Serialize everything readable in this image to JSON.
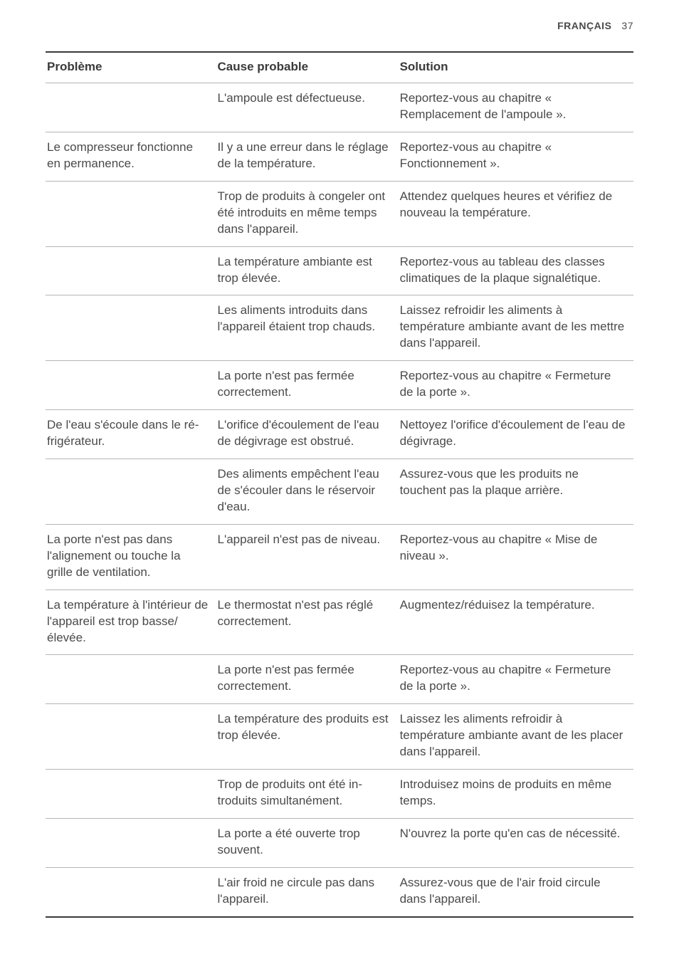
{
  "header": {
    "language_label": "FRANÇAIS",
    "page_number": "37"
  },
  "table": {
    "columns": {
      "problem": "Problème",
      "cause": "Cause probable",
      "solution": "Solution"
    },
    "column_widths_pct": [
      29,
      31,
      40
    ],
    "border_color_heavy": "#3a3a3a",
    "border_color_light": "#b5b5b5",
    "font_size_pt": 12.5,
    "rows": [
      {
        "problem": "",
        "cause": "L'ampoule est défectueuse.",
        "solution": "Reportez-vous au chapitre « Remplacement de l'am­poule »."
      },
      {
        "problem": "Le compresseur fonctionne en permanence.",
        "cause": "Il y a une erreur dans le rég­lage de la température.",
        "solution": "Reportez-vous au chapitre « Fonctionnement »."
      },
      {
        "problem": "",
        "cause": "Trop de produits à congeler ont été introduits en même temps dans l'appareil.",
        "solution": "Attendez quelques heures et vérifiez de nouveau la tem­pérature."
      },
      {
        "problem": "",
        "cause": "La température ambiante est trop élevée.",
        "solution": "Reportez-vous au tableau des classes climatiques de la plaque signalétique."
      },
      {
        "problem": "",
        "cause": "Les aliments introduits dans l'appareil étaient trop chauds.",
        "solution": "Laissez refroidir les aliments à température ambiante avant de les mettre dans l'appareil."
      },
      {
        "problem": "",
        "cause": "La porte n'est pas fermée correctement.",
        "solution": "Reportez-vous au chapitre « Fermeture de la porte »."
      },
      {
        "problem": "De l'eau s'écoule dans le ré­frigérateur.",
        "cause": "L'orifice d'écoulement de l'eau de dégivrage est ob­strué.",
        "solution": "Nettoyez l'orifice d'écoule­ment de l'eau de dégivrage."
      },
      {
        "problem": "",
        "cause": "Des aliments empêchent l'eau de s'écouler dans le réservoir d'eau.",
        "solution": "Assurez-vous que les pro­duits ne touchent pas la pla­que arrière."
      },
      {
        "problem": "La porte n'est pas dans l'alignement ou touche la grille de ventilation.",
        "cause": "L'appareil n'est pas de ni­veau.",
        "solution": "Reportez-vous au chapitre « Mise de niveau »."
      },
      {
        "problem": "La température à l'intérieur de l'appareil est trop basse/élevée.",
        "cause": "Le thermostat n'est pas ré­glé correctement.",
        "solution": "Augmentez/réduisez la tem­pérature."
      },
      {
        "problem": "",
        "cause": "La porte n'est pas fermée correctement.",
        "solution": "Reportez-vous au chapitre « Fermeture de la porte »."
      },
      {
        "problem": "",
        "cause": "La température des produits est trop élevée.",
        "solution": "Laissez les aliments refroidir à température ambiante avant de les placer dans l'appareil."
      },
      {
        "problem": "",
        "cause": "Trop de produits ont été in­troduits simultanément.",
        "solution": "Introduisez moins de pro­duits en même temps."
      },
      {
        "problem": "",
        "cause": "La porte a été ouverte trop souvent.",
        "solution": "N'ouvrez la porte qu'en cas de nécessité."
      },
      {
        "problem": "",
        "cause": "L'air froid ne circule pas dans l'appareil.",
        "solution": "Assurez-vous que de l'air froid circule dans l'appareil."
      }
    ]
  },
  "colors": {
    "text": "#4a4a4a",
    "heading_text": "#3a3a3a",
    "background": "#ffffff"
  }
}
